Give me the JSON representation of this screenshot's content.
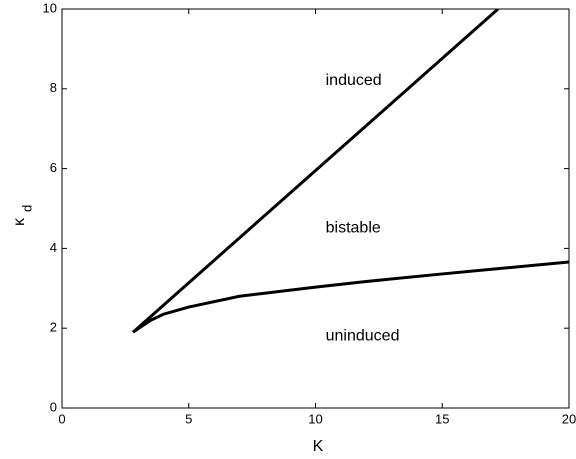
{
  "chart_data": {
    "type": "line",
    "xlabel": "K",
    "ylabel": "κ",
    "ylabel_subscript": "d",
    "annotations": [
      "induced",
      "bistable",
      "uninduced"
    ],
    "series": [
      {
        "color": "#000000",
        "x": [
          2.8,
          17.2
        ],
        "values": [
          1.9,
          10
        ]
      },
      {
        "color": "#000000",
        "x": [
          2.8,
          3.5,
          4,
          5,
          7,
          10,
          12,
          15,
          17,
          20
        ],
        "values": [
          1.9,
          2.2,
          2.35,
          2.53,
          2.8,
          3.03,
          3.17,
          3.36,
          3.48,
          3.66
        ]
      }
    ],
    "xlim": [
      0,
      20
    ],
    "xticks": [
      0,
      5,
      10,
      15,
      20
    ],
    "ylim": [
      0,
      10
    ],
    "yticks": [
      0,
      2,
      4,
      6,
      8,
      10
    ]
  }
}
